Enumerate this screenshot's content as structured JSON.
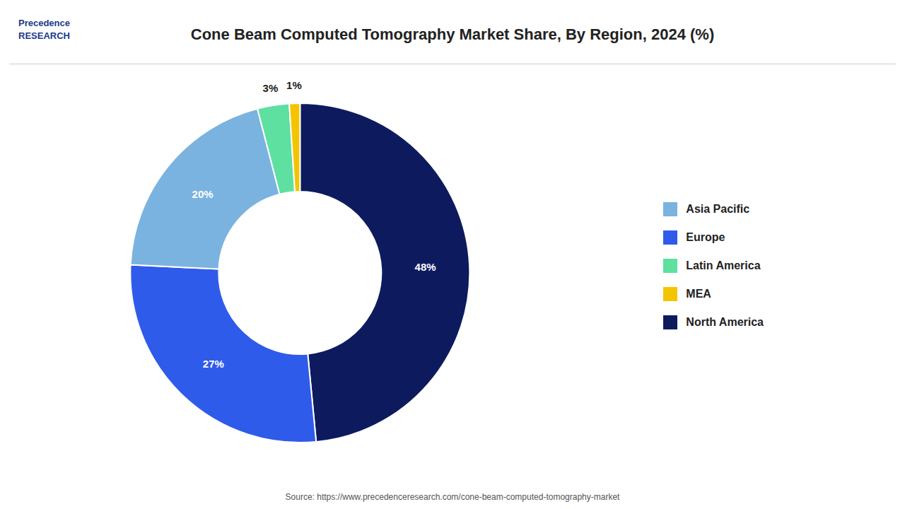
{
  "chart_data": {
    "type": "pie",
    "title": "Cone Beam Computed Tomography Market Share, By Region, 2024 (%)",
    "categories": [
      "North America",
      "Europe",
      "Asia Pacific",
      "Latin America",
      "MEA"
    ],
    "values": [
      48,
      27,
      20,
      3,
      1
    ],
    "value_labels": [
      "48%",
      "27%",
      "20%",
      "3%",
      "1%"
    ],
    "colors": [
      "#0d1b5e",
      "#2f5bea",
      "#7ab3e0",
      "#5de0a0",
      "#f5c400"
    ],
    "data_labels": true,
    "legend": "right",
    "annotations": [
      "Precedence\nRESEARCH",
      "Source: https://www.precedenceresearch.com/cone-beam-computed-tomography-market"
    ]
  }
}
